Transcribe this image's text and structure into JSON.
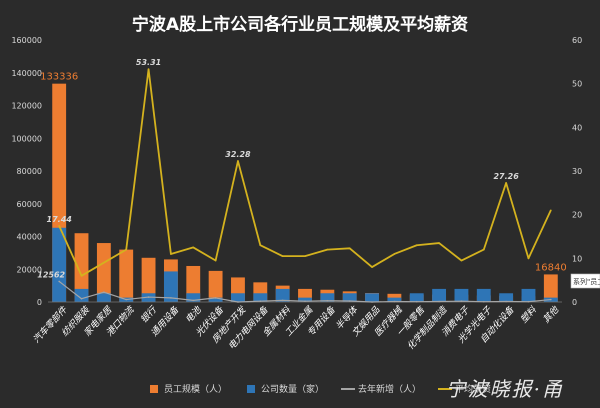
{
  "chart_data": {
    "type": "bar",
    "title": "宁波A股上市公司各行业员工规模及平均薪资",
    "categories": [
      "汽车零部件",
      "纺织服装",
      "家电家居",
      "港口物流",
      "银行",
      "通用设备",
      "电池",
      "光伏设备",
      "房地产开发",
      "电力电网设备",
      "金属材料",
      "工业金属",
      "专用设备",
      "半导体",
      "文娱用品",
      "医疗器械",
      "一般零售",
      "化学制品制造",
      "消费电子",
      "光学光电子",
      "自动化设备",
      "塑料",
      "其他"
    ],
    "series": [
      {
        "name": "员工规模（人）",
        "axis": "left",
        "kind": "stacked-bar",
        "color": "#ed7d31",
        "values": [
          133336,
          42000,
          36000,
          32000,
          27000,
          26000,
          22000,
          19000,
          15000,
          12000,
          10000,
          8000,
          7500,
          6500,
          5500,
          5000,
          4500,
          4500,
          4500,
          4000,
          3800,
          3500,
          16840
        ]
      },
      {
        "name": "公司数量（家）",
        "axis": "right",
        "kind": "stacked-bar",
        "color": "#2e75b6",
        "values": [
          17,
          3,
          2,
          1,
          2,
          7,
          2,
          1,
          2,
          2,
          3,
          1,
          2,
          2,
          2,
          1,
          2,
          3,
          3,
          3,
          2,
          3,
          1
        ]
      },
      {
        "name": "去年新增（人）",
        "axis": "left",
        "kind": "line",
        "color": "#a5a5a5",
        "values": [
          12562,
          2000,
          6000,
          1500,
          3000,
          2500,
          1000,
          2500,
          -1000,
          500,
          1000,
          500,
          800,
          600,
          -500,
          300,
          200,
          300,
          500,
          200,
          300,
          200,
          1500
        ]
      },
      {
        "name": "平均薪资",
        "axis": "right",
        "kind": "line",
        "color": "#d4b21e",
        "values": [
          17.44,
          6,
          9,
          12,
          53.31,
          11,
          12.5,
          9.5,
          32.28,
          13,
          10.5,
          10.5,
          12,
          12.3,
          8,
          11,
          13,
          13.5,
          9.5,
          12,
          27.26,
          10,
          21
        ]
      }
    ],
    "data_labels": [
      {
        "series": 0,
        "index": 0,
        "text": "133336",
        "color": "#ed7d31"
      },
      {
        "series": 0,
        "index": 22,
        "text": "16840",
        "color": "#ed7d31"
      },
      {
        "series": 2,
        "index": 0,
        "text": "12562",
        "color": "#d9d9d9"
      },
      {
        "series": 3,
        "index": 0,
        "text": "17.44",
        "color": "#d9d9d9"
      },
      {
        "series": 3,
        "index": 4,
        "text": "53.31",
        "color": "#d9d9d9"
      },
      {
        "series": 3,
        "index": 8,
        "text": "32.28",
        "color": "#d9d9d9"
      },
      {
        "series": 3,
        "index": 20,
        "text": "27.26",
        "color": "#d9d9d9"
      }
    ],
    "ylim_left": [
      0,
      160000
    ],
    "ylim_right": [
      0,
      60
    ],
    "yticks_left": [
      "0",
      "20000",
      "40000",
      "60000",
      "80000",
      "100000",
      "120000",
      "140000",
      "160000"
    ],
    "yticks_right": [
      "0",
      "10",
      "20",
      "30",
      "40",
      "50",
      "60"
    ],
    "legend_position": "bottom",
    "legend_labels": [
      "员工规模（人）",
      "公司数量（家）",
      "去年新增（人）",
      "平均薪资"
    ],
    "tooltip_text": "系列\"员工",
    "grid": false
  },
  "watermark": "宁波晓报·甬",
  "colors": {
    "background": "#2b2b2b",
    "text": "#d9d9d9",
    "title": "#ffffff"
  }
}
